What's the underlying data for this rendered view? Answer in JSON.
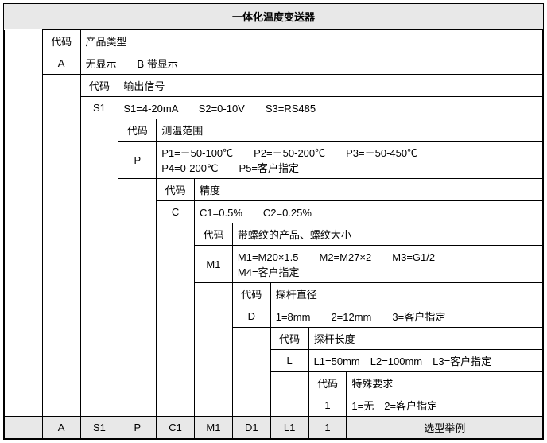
{
  "title": "一体化温度变送器",
  "colgroup": [
    48,
    48,
    48,
    48,
    48,
    48,
    48,
    48,
    48,
    248
  ],
  "rows": [
    {
      "cells": [
        {
          "cs": 1,
          "cls": "empty",
          "text": ""
        },
        {
          "cs": 1,
          "cls": "code",
          "bind": "labels.code"
        },
        {
          "cs": 8,
          "bind": "labels.product_type"
        }
      ]
    },
    {
      "cells": [
        {
          "cs": 1,
          "cls": "empty",
          "text": ""
        },
        {
          "cs": 1,
          "cls": "code",
          "text": "A"
        },
        {
          "cs": 8,
          "bind": "values.display"
        }
      ]
    },
    {
      "cells": [
        {
          "cs": 1,
          "cls": "empty",
          "text": ""
        },
        {
          "cs": 1,
          "cls": "empty",
          "text": ""
        },
        {
          "cs": 1,
          "cls": "code",
          "bind": "labels.code"
        },
        {
          "cs": 7,
          "bind": "labels.output_signal"
        }
      ]
    },
    {
      "cells": [
        {
          "cs": 1,
          "cls": "empty",
          "text": ""
        },
        {
          "cs": 1,
          "cls": "empty",
          "text": ""
        },
        {
          "cs": 1,
          "cls": "code",
          "text": "S1"
        },
        {
          "cs": 7,
          "bind": "values.output"
        }
      ]
    },
    {
      "cells": [
        {
          "cs": 1,
          "cls": "empty",
          "text": ""
        },
        {
          "cs": 1,
          "cls": "empty",
          "text": ""
        },
        {
          "cs": 1,
          "cls": "empty",
          "text": ""
        },
        {
          "cs": 1,
          "cls": "code",
          "bind": "labels.code"
        },
        {
          "cs": 6,
          "bind": "labels.temp_range"
        }
      ]
    },
    {
      "cells": [
        {
          "cs": 1,
          "cls": "empty",
          "text": ""
        },
        {
          "cs": 1,
          "cls": "empty",
          "text": ""
        },
        {
          "cs": 1,
          "cls": "empty",
          "text": ""
        },
        {
          "cs": 1,
          "cls": "code",
          "text": "P"
        },
        {
          "cs": 6,
          "bind": "values.temp"
        }
      ]
    },
    {
      "cells": [
        {
          "cs": 1,
          "cls": "empty",
          "text": ""
        },
        {
          "cs": 1,
          "cls": "empty",
          "text": ""
        },
        {
          "cs": 1,
          "cls": "empty",
          "text": ""
        },
        {
          "cs": 1,
          "cls": "empty",
          "text": ""
        },
        {
          "cs": 1,
          "cls": "code",
          "bind": "labels.code"
        },
        {
          "cs": 5,
          "bind": "labels.accuracy"
        }
      ]
    },
    {
      "cells": [
        {
          "cs": 1,
          "cls": "empty",
          "text": ""
        },
        {
          "cs": 1,
          "cls": "empty",
          "text": ""
        },
        {
          "cs": 1,
          "cls": "empty",
          "text": ""
        },
        {
          "cs": 1,
          "cls": "empty",
          "text": ""
        },
        {
          "cs": 1,
          "cls": "code",
          "text": "C"
        },
        {
          "cs": 5,
          "bind": "values.accuracy"
        }
      ]
    },
    {
      "cells": [
        {
          "cs": 1,
          "cls": "empty",
          "text": ""
        },
        {
          "cs": 1,
          "cls": "empty",
          "text": ""
        },
        {
          "cs": 1,
          "cls": "empty",
          "text": ""
        },
        {
          "cs": 1,
          "cls": "empty",
          "text": ""
        },
        {
          "cs": 1,
          "cls": "empty",
          "text": ""
        },
        {
          "cs": 1,
          "cls": "code",
          "bind": "labels.code"
        },
        {
          "cs": 4,
          "bind": "labels.thread"
        }
      ]
    },
    {
      "cells": [
        {
          "cs": 1,
          "cls": "empty",
          "text": ""
        },
        {
          "cs": 1,
          "cls": "empty",
          "text": ""
        },
        {
          "cs": 1,
          "cls": "empty",
          "text": ""
        },
        {
          "cs": 1,
          "cls": "empty",
          "text": ""
        },
        {
          "cs": 1,
          "cls": "empty",
          "text": ""
        },
        {
          "cs": 1,
          "cls": "code",
          "text": "M1"
        },
        {
          "cs": 4,
          "bind": "values.thread"
        }
      ]
    },
    {
      "cells": [
        {
          "cs": 1,
          "cls": "empty",
          "text": ""
        },
        {
          "cs": 1,
          "cls": "empty",
          "text": ""
        },
        {
          "cs": 1,
          "cls": "empty",
          "text": ""
        },
        {
          "cs": 1,
          "cls": "empty",
          "text": ""
        },
        {
          "cs": 1,
          "cls": "empty",
          "text": ""
        },
        {
          "cs": 1,
          "cls": "empty",
          "text": ""
        },
        {
          "cs": 1,
          "cls": "code",
          "bind": "labels.code"
        },
        {
          "cs": 3,
          "bind": "labels.probe_dia"
        }
      ]
    },
    {
      "cells": [
        {
          "cs": 1,
          "cls": "empty",
          "text": ""
        },
        {
          "cs": 1,
          "cls": "empty",
          "text": ""
        },
        {
          "cs": 1,
          "cls": "empty",
          "text": ""
        },
        {
          "cs": 1,
          "cls": "empty",
          "text": ""
        },
        {
          "cs": 1,
          "cls": "empty",
          "text": ""
        },
        {
          "cs": 1,
          "cls": "empty",
          "text": ""
        },
        {
          "cs": 1,
          "cls": "code",
          "text": "D"
        },
        {
          "cs": 3,
          "bind": "values.probe_dia"
        }
      ]
    },
    {
      "cells": [
        {
          "cs": 1,
          "cls": "empty",
          "text": ""
        },
        {
          "cs": 1,
          "cls": "empty",
          "text": ""
        },
        {
          "cs": 1,
          "cls": "empty",
          "text": ""
        },
        {
          "cs": 1,
          "cls": "empty",
          "text": ""
        },
        {
          "cs": 1,
          "cls": "empty",
          "text": ""
        },
        {
          "cs": 1,
          "cls": "empty",
          "text": ""
        },
        {
          "cs": 1,
          "cls": "empty",
          "text": ""
        },
        {
          "cs": 1,
          "cls": "code",
          "bind": "labels.code"
        },
        {
          "cs": 2,
          "bind": "labels.probe_len"
        }
      ]
    },
    {
      "cells": [
        {
          "cs": 1,
          "cls": "empty",
          "text": ""
        },
        {
          "cs": 1,
          "cls": "empty",
          "text": ""
        },
        {
          "cs": 1,
          "cls": "empty",
          "text": ""
        },
        {
          "cs": 1,
          "cls": "empty",
          "text": ""
        },
        {
          "cs": 1,
          "cls": "empty",
          "text": ""
        },
        {
          "cs": 1,
          "cls": "empty",
          "text": ""
        },
        {
          "cs": 1,
          "cls": "empty",
          "text": ""
        },
        {
          "cs": 1,
          "cls": "code",
          "text": "L"
        },
        {
          "cs": 2,
          "bind": "values.probe_len"
        }
      ]
    },
    {
      "cells": [
        {
          "cs": 1,
          "cls": "empty",
          "text": ""
        },
        {
          "cs": 1,
          "cls": "empty",
          "text": ""
        },
        {
          "cs": 1,
          "cls": "empty",
          "text": ""
        },
        {
          "cs": 1,
          "cls": "empty",
          "text": ""
        },
        {
          "cs": 1,
          "cls": "empty",
          "text": ""
        },
        {
          "cs": 1,
          "cls": "empty",
          "text": ""
        },
        {
          "cs": 1,
          "cls": "empty",
          "text": ""
        },
        {
          "cs": 1,
          "cls": "empty",
          "text": ""
        },
        {
          "cs": 1,
          "cls": "code",
          "bind": "labels.code"
        },
        {
          "cs": 1,
          "bind": "labels.special"
        }
      ]
    },
    {
      "cells": [
        {
          "cs": 1,
          "cls": "empty",
          "text": ""
        },
        {
          "cs": 1,
          "cls": "empty",
          "text": ""
        },
        {
          "cs": 1,
          "cls": "empty",
          "text": ""
        },
        {
          "cs": 1,
          "cls": "empty",
          "text": ""
        },
        {
          "cs": 1,
          "cls": "empty",
          "text": ""
        },
        {
          "cs": 1,
          "cls": "empty",
          "text": ""
        },
        {
          "cs": 1,
          "cls": "empty",
          "text": ""
        },
        {
          "cs": 1,
          "cls": "empty",
          "text": ""
        },
        {
          "cs": 1,
          "cls": "code",
          "text": "1"
        },
        {
          "cs": 1,
          "bind": "values.special"
        }
      ]
    }
  ],
  "footer": [
    "",
    "A",
    "S1",
    "P",
    "C1",
    "M1",
    "D1",
    "L1",
    "1",
    "选型举例"
  ],
  "labels": {
    "code": "代码",
    "product_type": "产品类型",
    "output_signal": "输出信号",
    "temp_range": "测温范围",
    "accuracy": "精度",
    "thread": "带螺纹的产品、螺纹大小",
    "probe_dia": "探杆直径",
    "probe_len": "探杆长度",
    "special": "特殊要求"
  },
  "values": {
    "display": "无显示　　B 带显示",
    "output": "S1=4-20mA　　S2=0-10V　　S3=RS485",
    "temp": "P1=－50-100℃　　P2=－50-200℃　　P3=－50-450℃\nP4=0-200℃　　P5=客户指定",
    "accuracy": "C1=0.5%　　C2=0.25%",
    "thread": "M1=M20×1.5　　M2=M27×2　　M3=G1/2\nM4=客户指定",
    "probe_dia": "1=8mm　　2=12mm　　3=客户指定",
    "probe_len": "L1=50mm　L2=100mm　L3=客户指定",
    "special": "1=无　2=客户指定"
  }
}
